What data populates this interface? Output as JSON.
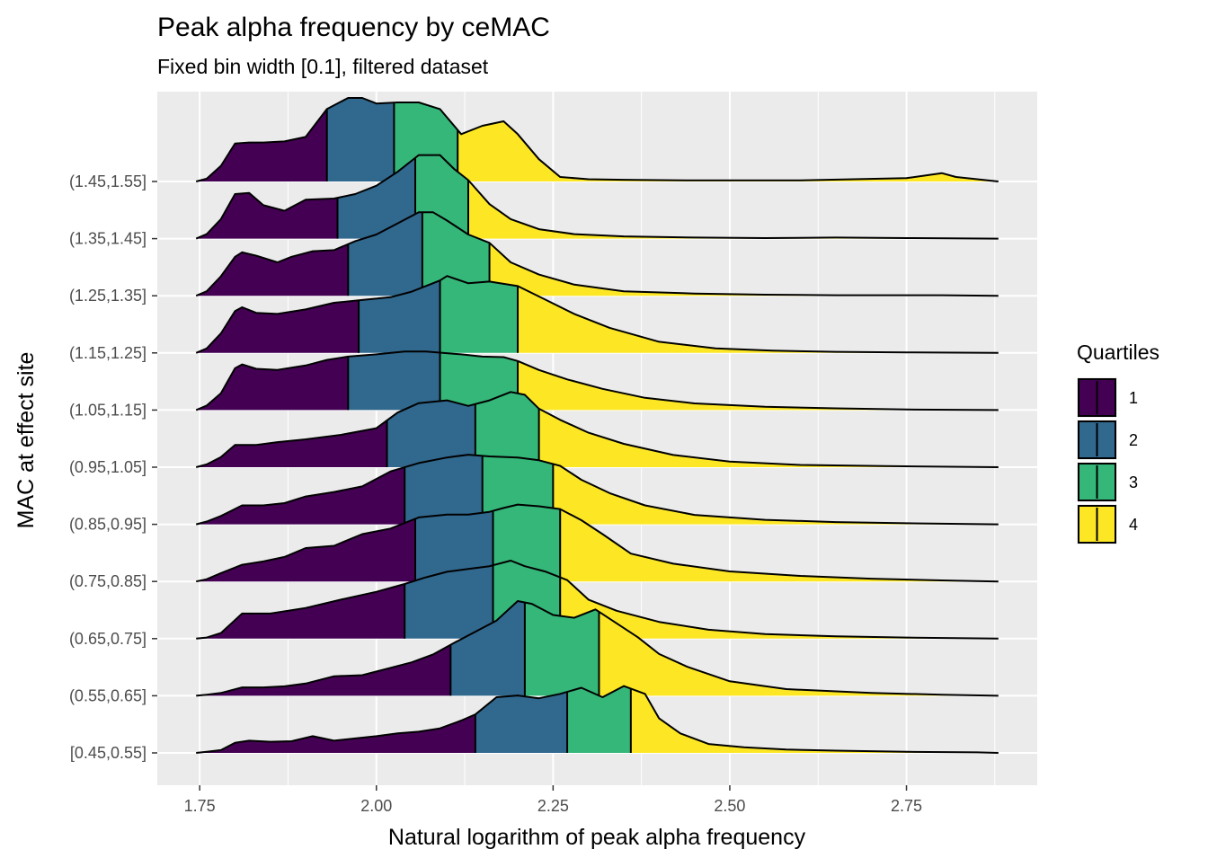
{
  "chart_data": {
    "type": "ridgeline",
    "title": "Peak alpha frequency by ceMAC",
    "subtitle": "Fixed bin width [0.1], filtered dataset",
    "xlabel": "Natural logarithm of peak alpha frequency",
    "ylabel": "MAC at effect site",
    "xlim": [
      1.69,
      2.935
    ],
    "xticks": [
      1.75,
      2.0,
      2.25,
      2.5,
      2.75
    ],
    "xtick_labels": [
      "1.75",
      "2.00",
      "2.25",
      "2.50",
      "2.75"
    ],
    "grid": true,
    "legend": {
      "title": "Quartiles",
      "position": "right",
      "items": [
        {
          "label": "1",
          "color": "#440154"
        },
        {
          "label": "2",
          "color": "#31688E"
        },
        {
          "label": "3",
          "color": "#35B779"
        },
        {
          "label": "4",
          "color": "#FDE725"
        }
      ]
    },
    "colors": [
      "#440154",
      "#31688E",
      "#35B779",
      "#FDE725"
    ],
    "ridge_scale_note": "",
    "categories": [
      "[0.45,0.55]",
      "(0.55,0.65]",
      "(0.65,0.75]",
      "(0.75,0.85]",
      "(0.85,0.95]",
      "(0.95,1.05]",
      "(1.05,1.15]",
      "(1.15,1.25]",
      "(1.25,1.35]",
      "(1.35,1.45]",
      "(1.45,1.55]"
    ],
    "series": [
      {
        "category": "[0.45,0.55]",
        "quartiles": [
          2.14,
          2.27,
          2.36
        ],
        "x": [
          1.745,
          1.76,
          1.78,
          1.8,
          1.82,
          1.85,
          1.88,
          1.91,
          1.94,
          1.97,
          2.0,
          2.03,
          2.06,
          2.09,
          2.12,
          2.14,
          2.17,
          2.2,
          2.23,
          2.26,
          2.29,
          2.32,
          2.35,
          2.38,
          2.4,
          2.43,
          2.47,
          2.52,
          2.58,
          2.65,
          2.75,
          2.85,
          2.88
        ],
        "y": [
          0.0,
          0.02,
          0.05,
          0.18,
          0.22,
          0.2,
          0.21,
          0.3,
          0.22,
          0.26,
          0.3,
          0.35,
          0.38,
          0.44,
          0.58,
          0.69,
          1.0,
          1.03,
          0.98,
          1.06,
          1.17,
          1.0,
          1.2,
          1.06,
          0.62,
          0.35,
          0.16,
          0.1,
          0.06,
          0.04,
          0.02,
          0.01,
          0.0
        ]
      },
      {
        "category": "(0.55,0.65]",
        "quartiles": [
          2.105,
          2.21,
          2.315
        ],
        "x": [
          1.745,
          1.76,
          1.78,
          1.81,
          1.84,
          1.87,
          1.9,
          1.94,
          1.98,
          2.02,
          2.05,
          2.08,
          2.11,
          2.14,
          2.17,
          2.2,
          2.22,
          2.25,
          2.28,
          2.31,
          2.34,
          2.37,
          2.4,
          2.44,
          2.5,
          2.58,
          2.7,
          2.8,
          2.88
        ],
        "y": [
          0.0,
          0.02,
          0.05,
          0.15,
          0.15,
          0.17,
          0.22,
          0.35,
          0.37,
          0.5,
          0.6,
          0.74,
          0.95,
          1.15,
          1.35,
          1.7,
          1.65,
          1.45,
          1.4,
          1.55,
          1.3,
          1.05,
          0.75,
          0.52,
          0.26,
          0.12,
          0.05,
          0.02,
          0.0
        ]
      },
      {
        "category": "(0.65,0.75]",
        "quartiles": [
          2.04,
          2.165,
          2.26
        ],
        "x": [
          1.745,
          1.76,
          1.78,
          1.81,
          1.85,
          1.9,
          1.95,
          2.0,
          2.04,
          2.07,
          2.1,
          2.13,
          2.16,
          2.19,
          2.21,
          2.24,
          2.27,
          2.3,
          2.34,
          2.4,
          2.47,
          2.55,
          2.65,
          2.75,
          2.88
        ],
        "y": [
          0.0,
          0.02,
          0.1,
          0.45,
          0.45,
          0.55,
          0.7,
          0.84,
          0.98,
          1.1,
          1.2,
          1.25,
          1.3,
          1.4,
          1.3,
          1.2,
          1.05,
          0.7,
          0.5,
          0.3,
          0.16,
          0.08,
          0.04,
          0.02,
          0.0
        ]
      },
      {
        "category": "(0.75,0.85]",
        "quartiles": [
          2.055,
          2.165,
          2.26
        ],
        "x": [
          1.745,
          1.76,
          1.78,
          1.81,
          1.84,
          1.87,
          1.9,
          1.94,
          1.98,
          2.02,
          2.06,
          2.1,
          2.13,
          2.16,
          2.18,
          2.2,
          2.23,
          2.26,
          2.29,
          2.32,
          2.36,
          2.42,
          2.5,
          2.6,
          2.7,
          2.8,
          2.88
        ],
        "y": [
          0.0,
          0.04,
          0.15,
          0.3,
          0.36,
          0.44,
          0.6,
          0.64,
          0.85,
          0.95,
          1.15,
          1.2,
          1.2,
          1.25,
          1.32,
          1.38,
          1.35,
          1.3,
          1.1,
          0.85,
          0.5,
          0.32,
          0.18,
          0.1,
          0.05,
          0.02,
          0.0
        ]
      },
      {
        "category": "(0.85,0.95]",
        "quartiles": [
          2.04,
          2.15,
          2.25
        ],
        "x": [
          1.745,
          1.76,
          1.78,
          1.81,
          1.84,
          1.87,
          1.9,
          1.94,
          1.98,
          2.02,
          2.06,
          2.1,
          2.13,
          2.16,
          2.2,
          2.23,
          2.26,
          2.29,
          2.33,
          2.38,
          2.45,
          2.55,
          2.65,
          2.75,
          2.88
        ],
        "y": [
          0.0,
          0.05,
          0.15,
          0.34,
          0.34,
          0.38,
          0.5,
          0.58,
          0.68,
          0.95,
          1.1,
          1.2,
          1.25,
          1.22,
          1.2,
          1.15,
          1.05,
          0.8,
          0.56,
          0.34,
          0.17,
          0.08,
          0.04,
          0.02,
          0.0
        ]
      },
      {
        "category": "(0.95,1.05]",
        "quartiles": [
          2.015,
          2.14,
          2.23
        ],
        "x": [
          1.745,
          1.76,
          1.78,
          1.8,
          1.83,
          1.86,
          1.9,
          1.95,
          2.0,
          2.03,
          2.06,
          2.1,
          2.13,
          2.16,
          2.19,
          2.21,
          2.23,
          2.26,
          2.3,
          2.35,
          2.42,
          2.5,
          2.6,
          2.72,
          2.88
        ],
        "y": [
          0.0,
          0.05,
          0.18,
          0.4,
          0.4,
          0.45,
          0.5,
          0.58,
          0.7,
          0.98,
          1.15,
          1.2,
          1.1,
          1.2,
          1.35,
          1.3,
          1.05,
          0.85,
          0.62,
          0.42,
          0.22,
          0.1,
          0.04,
          0.02,
          0.0
        ]
      },
      {
        "category": "(1.05,1.15]",
        "quartiles": [
          1.96,
          2.09,
          2.2
        ],
        "x": [
          1.745,
          1.76,
          1.78,
          1.8,
          1.81,
          1.83,
          1.86,
          1.9,
          1.93,
          1.96,
          2.0,
          2.04,
          2.07,
          2.09,
          2.12,
          2.15,
          2.18,
          2.2,
          2.23,
          2.27,
          2.32,
          2.38,
          2.45,
          2.55,
          2.65,
          2.75,
          2.88
        ],
        "y": [
          0.0,
          0.08,
          0.3,
          0.75,
          0.82,
          0.74,
          0.72,
          0.8,
          0.9,
          0.96,
          1.0,
          1.05,
          1.05,
          1.03,
          1.0,
          0.96,
          0.95,
          0.88,
          0.72,
          0.55,
          0.38,
          0.22,
          0.12,
          0.06,
          0.03,
          0.01,
          0.0
        ]
      },
      {
        "category": "(1.15,1.25]",
        "quartiles": [
          1.975,
          2.09,
          2.2
        ],
        "x": [
          1.745,
          1.76,
          1.78,
          1.8,
          1.81,
          1.83,
          1.86,
          1.9,
          1.94,
          1.98,
          2.02,
          2.05,
          2.09,
          2.1,
          2.13,
          2.16,
          2.2,
          2.24,
          2.28,
          2.33,
          2.4,
          2.48,
          2.56,
          2.65,
          2.75,
          2.88
        ],
        "y": [
          0.0,
          0.08,
          0.35,
          0.75,
          0.82,
          0.72,
          0.7,
          0.78,
          0.9,
          0.95,
          1.0,
          1.1,
          1.3,
          1.38,
          1.25,
          1.28,
          1.2,
          0.95,
          0.7,
          0.45,
          0.2,
          0.08,
          0.04,
          0.02,
          0.01,
          0.0
        ]
      },
      {
        "category": "(1.25,1.35]",
        "quartiles": [
          1.96,
          2.065,
          2.16
        ],
        "x": [
          1.745,
          1.76,
          1.78,
          1.8,
          1.81,
          1.83,
          1.86,
          1.88,
          1.91,
          1.94,
          1.97,
          2.0,
          2.03,
          2.06,
          2.08,
          2.1,
          2.13,
          2.16,
          2.19,
          2.23,
          2.28,
          2.35,
          2.45,
          2.55,
          2.65,
          2.8,
          2.88
        ],
        "y": [
          0.0,
          0.08,
          0.35,
          0.7,
          0.78,
          0.72,
          0.6,
          0.7,
          0.8,
          0.82,
          0.98,
          1.1,
          1.3,
          1.5,
          1.5,
          1.35,
          1.1,
          0.95,
          0.6,
          0.38,
          0.2,
          0.08,
          0.04,
          0.02,
          0.01,
          0.01,
          0.0
        ]
      },
      {
        "category": "(1.35,1.45]",
        "quartiles": [
          1.945,
          2.055,
          2.13
        ],
        "x": [
          1.745,
          1.76,
          1.78,
          1.8,
          1.82,
          1.84,
          1.87,
          1.9,
          1.94,
          1.97,
          2.0,
          2.03,
          2.06,
          2.09,
          2.11,
          2.13,
          2.16,
          2.19,
          2.23,
          2.28,
          2.35,
          2.45,
          2.55,
          2.65,
          2.75,
          2.88
        ],
        "y": [
          0.0,
          0.08,
          0.35,
          0.8,
          0.82,
          0.6,
          0.5,
          0.7,
          0.72,
          0.8,
          0.95,
          1.2,
          1.5,
          1.5,
          1.25,
          1.05,
          0.62,
          0.35,
          0.17,
          0.08,
          0.04,
          0.02,
          0.01,
          0.02,
          0.01,
          0.0
        ]
      },
      {
        "category": "(1.45,1.55]",
        "quartiles": [
          1.93,
          2.025,
          2.115
        ],
        "x": [
          1.745,
          1.76,
          1.78,
          1.8,
          1.82,
          1.84,
          1.87,
          1.9,
          1.93,
          1.96,
          1.98,
          2.0,
          2.03,
          2.06,
          2.09,
          2.12,
          2.15,
          2.18,
          2.2,
          2.23,
          2.26,
          2.3,
          2.35,
          2.45,
          2.6,
          2.75,
          2.8,
          2.82,
          2.88
        ],
        "y": [
          0.0,
          0.05,
          0.28,
          0.68,
          0.7,
          0.7,
          0.72,
          0.8,
          1.3,
          1.5,
          1.5,
          1.4,
          1.42,
          1.42,
          1.3,
          0.85,
          1.0,
          1.08,
          0.85,
          0.4,
          0.08,
          0.04,
          0.03,
          0.02,
          0.02,
          0.06,
          0.15,
          0.08,
          0.0
        ]
      }
    ]
  }
}
